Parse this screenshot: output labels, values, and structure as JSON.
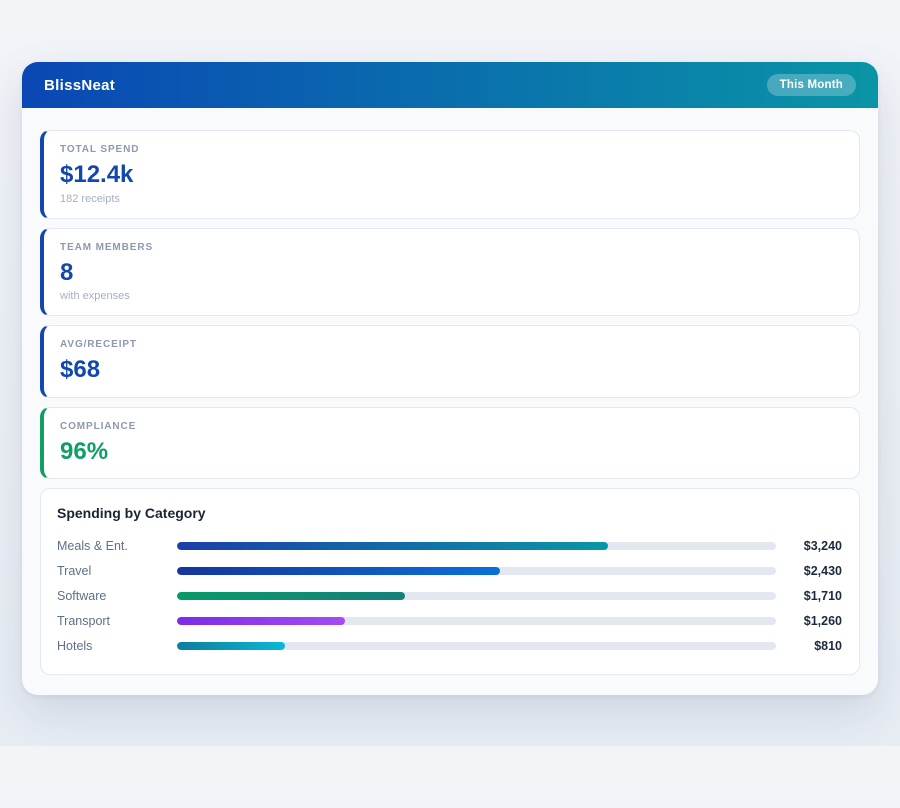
{
  "header": {
    "title": "BlissNeat",
    "badge": "This Month",
    "gradient_from": "#0a47b4",
    "gradient_to": "#0a95a6"
  },
  "stats": [
    {
      "label": "TOTAL SPEND",
      "value": "$12.4k",
      "sub": "182 receipts",
      "accent": "#1247ad"
    },
    {
      "label": "TEAM MEMBERS",
      "value": "8",
      "sub": "with expenses",
      "accent": "#1247ad"
    },
    {
      "label": "AVG/RECEIPT",
      "value": "$68",
      "sub": "",
      "accent": "#1247ad"
    },
    {
      "label": "COMPLIANCE",
      "value": "96%",
      "sub": "",
      "accent": "#0f9e63"
    }
  ],
  "chart_data": {
    "type": "bar",
    "orientation": "horizontal",
    "title": "Spending by Category",
    "categories": [
      "Meals & Ent.",
      "Travel",
      "Software",
      "Transport",
      "Hotels"
    ],
    "values": [
      3240,
      2430,
      1710,
      1260,
      810
    ],
    "value_labels": [
      "$3,240",
      "$2,430",
      "$1,710",
      "$1,260",
      "$810"
    ],
    "xlim": [
      0,
      4500
    ],
    "grid": false,
    "legend": false,
    "track_color": "#e3e8f0",
    "bar_gradients": [
      [
        "#1b3fa9",
        "#0a96a6"
      ],
      [
        "#16349f",
        "#0a70d8"
      ],
      [
        "#0a9a68",
        "#15807a"
      ],
      [
        "#7d2be5",
        "#a54cf2"
      ],
      [
        "#0d7d9d",
        "#0cb8d6"
      ]
    ]
  }
}
